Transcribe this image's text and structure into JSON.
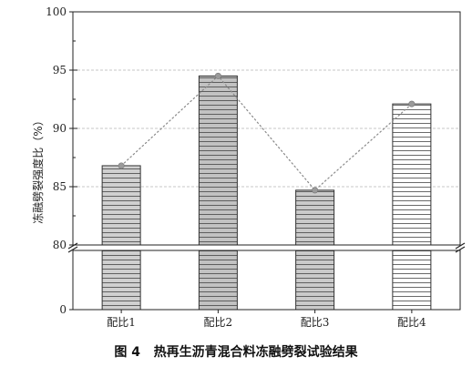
{
  "chart_data": {
    "type": "bar",
    "title": "",
    "caption": "图 4   热再生沥青混合料冻融劈裂试验结果",
    "ylabel": "冻融劈裂强度比（%）",
    "xlabel": "",
    "categories": [
      "配比1",
      "配比2",
      "配比3",
      "配比4"
    ],
    "values": [
      86.8,
      94.5,
      84.7,
      92.1
    ],
    "yticks_upper": [
      "80",
      "85",
      "90",
      "95",
      "100"
    ],
    "ytick_lower": "0",
    "ylim_upper": [
      80,
      100
    ],
    "ylim_lower": [
      0,
      80
    ],
    "axis_break": true,
    "grid": "horizontal dashed",
    "bar_fill": "horizontal hatch",
    "bar_colors": [
      "#d0d0d0",
      "#c2c2c2",
      "#cacaca",
      "#ffffff"
    ],
    "trend_line": "dotted",
    "marker_color": "#9a9a9a"
  }
}
